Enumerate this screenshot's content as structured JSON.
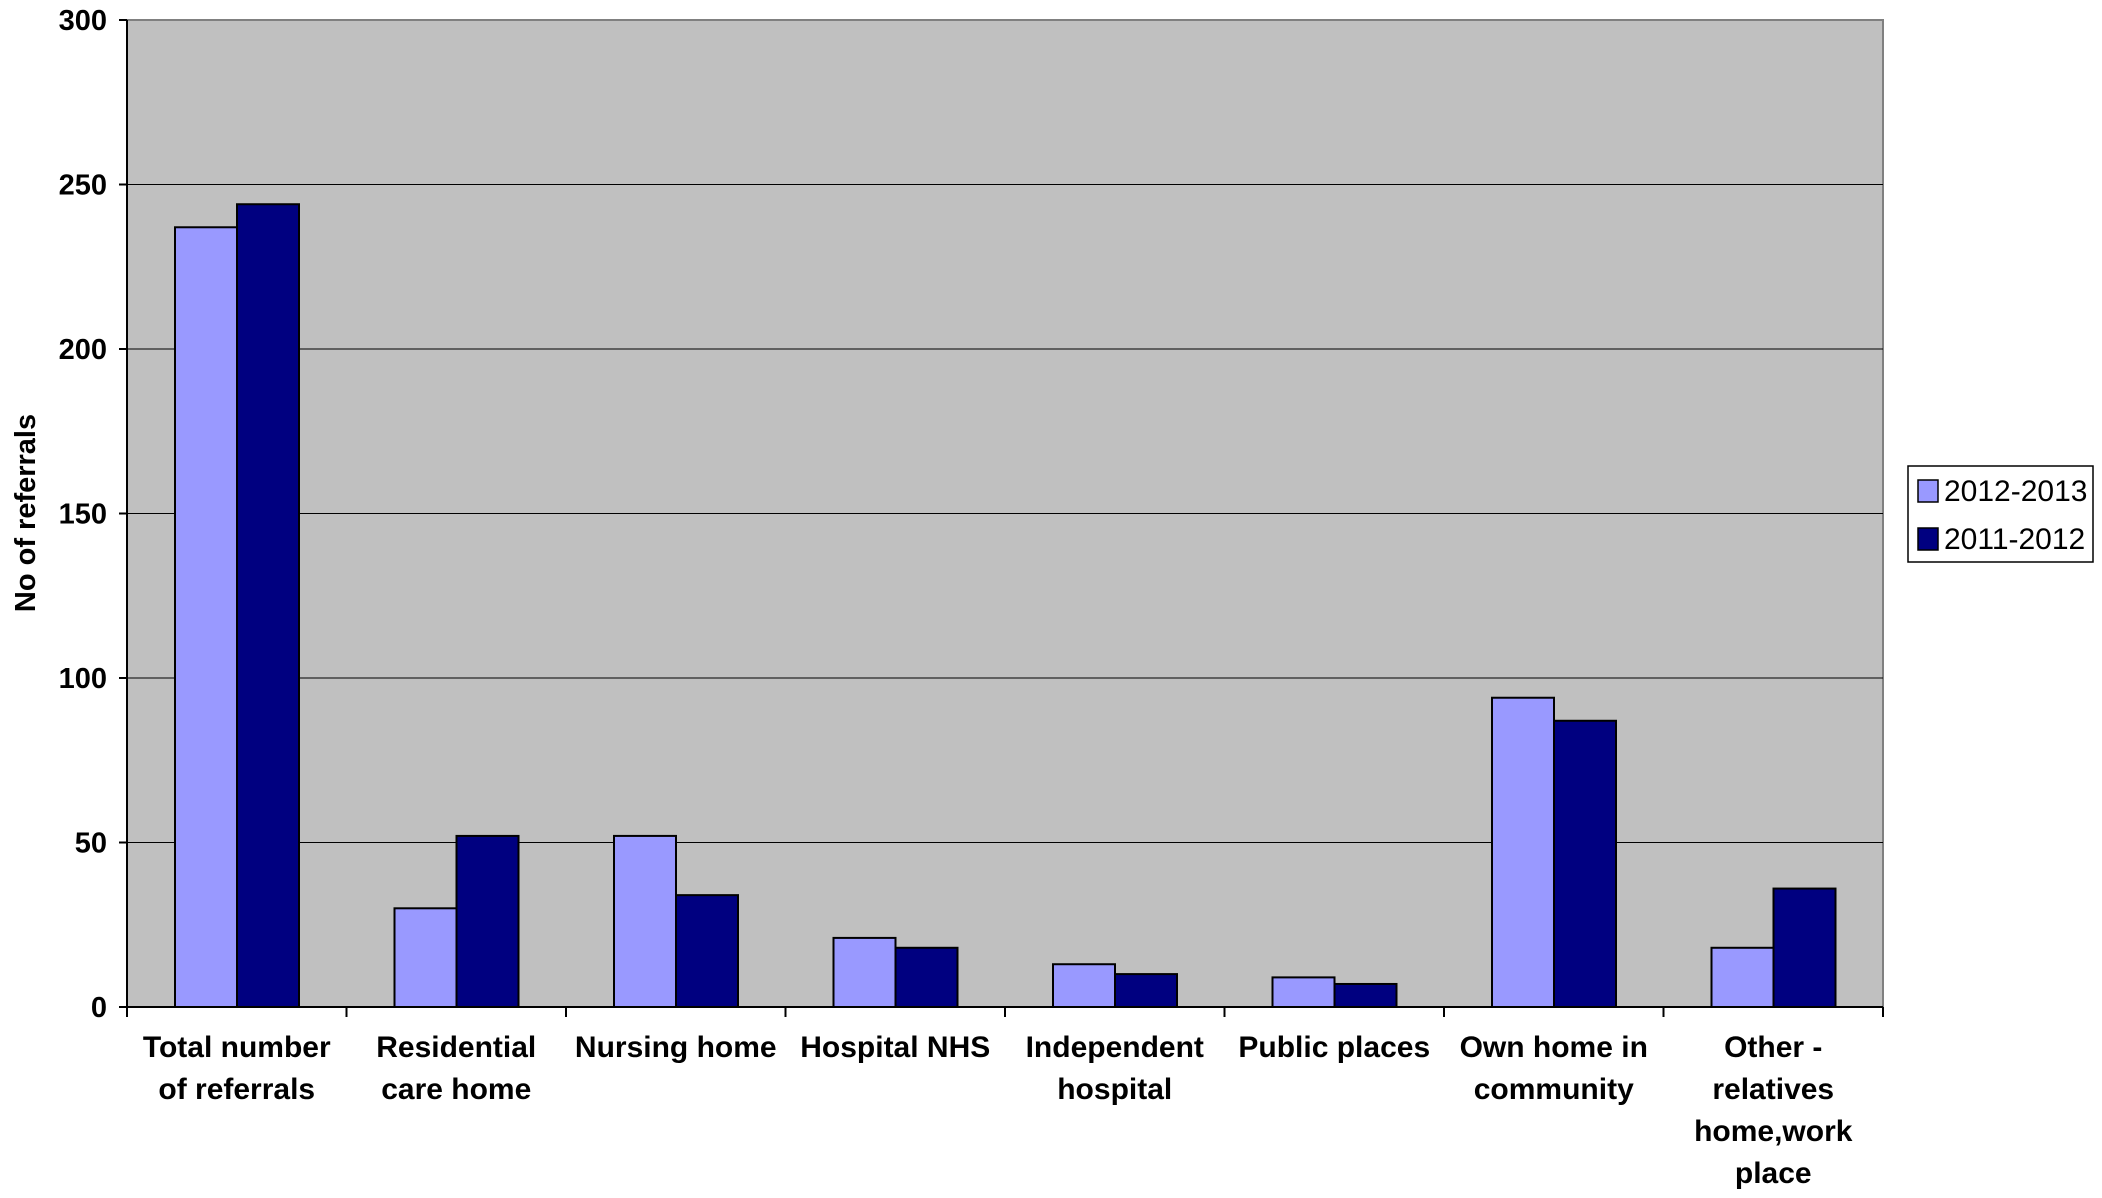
{
  "chart_data": {
    "type": "bar",
    "title": "",
    "xlabel": "",
    "ylabel": "No of referrals",
    "ylim": [
      0,
      300
    ],
    "yticks": [
      0,
      50,
      100,
      150,
      200,
      250,
      300
    ],
    "grid": true,
    "legend_position": "right",
    "categories": [
      [
        "Total number",
        "of referrals"
      ],
      [
        "Residential",
        "care home"
      ],
      [
        "Nursing home"
      ],
      [
        "Hospital NHS"
      ],
      [
        "Independent",
        "hospital"
      ],
      [
        "Public places"
      ],
      [
        "Own home in",
        "community"
      ],
      [
        "Other -",
        "relatives",
        "home,work",
        "place"
      ]
    ],
    "series": [
      {
        "name": "2012-2013",
        "color": "#9999ff",
        "values": [
          237,
          30,
          52,
          21,
          13,
          9,
          94,
          18
        ]
      },
      {
        "name": "2011-2012",
        "color": "#000080",
        "values": [
          244,
          52,
          34,
          18,
          10,
          7,
          87,
          36
        ]
      }
    ],
    "plot_background": "#c0c0c0"
  }
}
